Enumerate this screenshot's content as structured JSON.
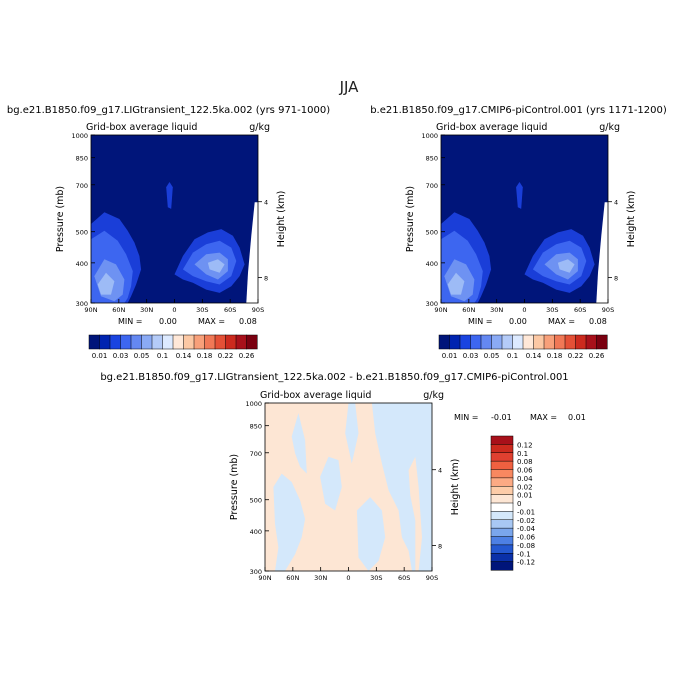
{
  "figure": {
    "title": "JJA"
  },
  "colors": {
    "deep_blue": "#00157a",
    "background": "#ffffff"
  },
  "chart_data": [
    {
      "type": "heatmap",
      "title": "bg.e21.B1850.f09_g17.LIGtransient_122.5ka.002 (yrs 971-1000)",
      "subtitle": "Grid-box average liquid",
      "units": "g/kg",
      "ylabel": "Pressure (mb)",
      "y2label": "Height (km)",
      "x_ticks": [
        "90N",
        "60N",
        "30N",
        "0",
        "30S",
        "60S",
        "90S"
      ],
      "y_ticks": [
        "300",
        "400",
        "500",
        "700",
        "850",
        "1000"
      ],
      "y2_ticks": [
        "8",
        "4"
      ],
      "ylim": [
        1000,
        300
      ],
      "min_label": "MIN =",
      "min_value": "0.00",
      "max_label": "MAX =",
      "max_value": "0.08",
      "colorbar_ticks": [
        "0.01",
        "0.03",
        "0.05",
        "0.1",
        "0.14",
        "0.18",
        "0.22",
        "0.26"
      ],
      "colorbar_colors": [
        "#00157a",
        "#0024b0",
        "#1a44e0",
        "#3d66f0",
        "#6488f2",
        "#8aaaf5",
        "#b4cbf8",
        "#ddeaff",
        "#ffe8d8",
        "#fcc8a4",
        "#f8a07a",
        "#f07856",
        "#e45036",
        "#cc2a1e",
        "#a8101a",
        "#7a0010"
      ]
    },
    {
      "type": "heatmap",
      "title": "b.e21.B1850.f09_g17.CMIP6-piControl.001 (yrs 1171-1200)",
      "subtitle": "Grid-box average liquid",
      "units": "g/kg",
      "ylabel": "Pressure (mb)",
      "y2label": "Height (km)",
      "x_ticks": [
        "90N",
        "60N",
        "30N",
        "0",
        "30S",
        "60S",
        "90S"
      ],
      "y_ticks": [
        "300",
        "400",
        "500",
        "700",
        "850",
        "1000"
      ],
      "y2_ticks": [
        "8",
        "4"
      ],
      "ylim": [
        1000,
        300
      ],
      "min_label": "MIN =",
      "min_value": "0.00",
      "max_label": "MAX =",
      "max_value": "0.08",
      "colorbar_ticks": [
        "0.01",
        "0.03",
        "0.05",
        "0.1",
        "0.14",
        "0.18",
        "0.22",
        "0.26"
      ],
      "colorbar_colors": [
        "#00157a",
        "#0024b0",
        "#1a44e0",
        "#3d66f0",
        "#6488f2",
        "#8aaaf5",
        "#b4cbf8",
        "#ddeaff",
        "#ffe8d8",
        "#fcc8a4",
        "#f8a07a",
        "#f07856",
        "#e45036",
        "#cc2a1e",
        "#a8101a",
        "#7a0010"
      ]
    },
    {
      "type": "heatmap",
      "title": "bg.e21.B1850.f09_g17.LIGtransient_122.5ka.002 - b.e21.B1850.f09_g17.CMIP6-piControl.001",
      "subtitle": "Grid-box average liquid",
      "units": "g/kg",
      "ylabel": "Pressure (mb)",
      "y2label": "Height (km)",
      "x_ticks": [
        "90N",
        "60N",
        "30N",
        "0",
        "30S",
        "60S",
        "90S"
      ],
      "y_ticks": [
        "300",
        "400",
        "500",
        "700",
        "850",
        "1000"
      ],
      "y2_ticks": [
        "8",
        "4"
      ],
      "ylim": [
        1000,
        300
      ],
      "min_label": "MIN =",
      "min_value": "-0.01",
      "max_label": "MAX =",
      "max_value": "0.01",
      "legend_labels": [
        "0.12",
        "0.1",
        "0.08",
        "0.06",
        "0.04",
        "0.02",
        "0.01",
        "0",
        "-0.01",
        "-0.02",
        "-0.04",
        "-0.06",
        "-0.08",
        "-0.1",
        "-0.12"
      ],
      "legend_colors": [
        "#a8101a",
        "#cc2a1e",
        "#e04030",
        "#f06040",
        "#f88860",
        "#fcaa84",
        "#fdcca8",
        "#fde6d4",
        "#ffffff",
        "#d4e8fb",
        "#a8c8f4",
        "#7aa6ec",
        "#4d80e4",
        "#2458d0",
        "#0a30a8",
        "#00157a"
      ],
      "fill_positive": "#fde6d4",
      "fill_negative": "#d4e8fb"
    }
  ]
}
